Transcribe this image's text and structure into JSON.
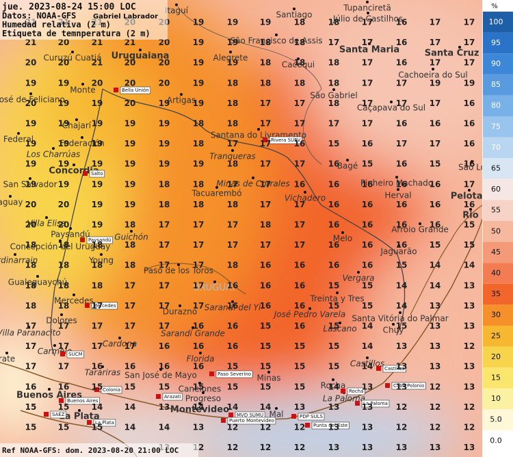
{
  "header": {
    "line1": "jue. 2023-08-24 15:00 LOC",
    "source": "Datos: NOAA-GFS",
    "author": "Gabriel Labrador",
    "variable": "Humedad relativa (2 m)",
    "labels": "Etiqueta de temnperatura (2 m)"
  },
  "footer": "Ref NOAA-GFS: dom. 2023-08-20 21:00 LOC",
  "legend": {
    "unit": "%",
    "values": [
      "100",
      "95",
      "90",
      "85",
      "80",
      "75",
      "70",
      "65",
      "60",
      "55",
      "50",
      "45",
      "40",
      "35",
      "30",
      "25",
      "20",
      "15",
      "10",
      "5.0",
      "0.0"
    ],
    "colors": [
      "#1f5fa8",
      "#2a73c8",
      "#3c87d8",
      "#5a9be0",
      "#78b0e8",
      "#98c4ee",
      "#b8d6f2",
      "#d8e6f4",
      "#f6e6e4",
      "#f7d2c6",
      "#f6b9a0",
      "#f59a78",
      "#f47c52",
      "#f2652b",
      "#f5902a",
      "#f7b731",
      "#f8d44c",
      "#fae56e",
      "#fcf1a2",
      "#fef8d8",
      "#ffffff"
    ]
  },
  "temperatures": [
    [
      21,
      21,
      21,
      20,
      20,
      19,
      19,
      19,
      18,
      18,
      17,
      16,
      17,
      17
    ],
    [
      21,
      20,
      21,
      21,
      20,
      19,
      19,
      18,
      18,
      17,
      17,
      16,
      17,
      17
    ],
    [
      20,
      20,
      21,
      20,
      20,
      19,
      19,
      18,
      18,
      18,
      17,
      16,
      17,
      17
    ],
    [
      19,
      19,
      20,
      20,
      20,
      19,
      18,
      18,
      18,
      18,
      17,
      17,
      19,
      19
    ],
    [
      20,
      19,
      19,
      20,
      19,
      19,
      18,
      17,
      17,
      18,
      17,
      17,
      17,
      16
    ],
    [
      19,
      19,
      19,
      19,
      19,
      18,
      18,
      17,
      17,
      17,
      17,
      16,
      16,
      16
    ],
    [
      19,
      19,
      19,
      19,
      19,
      18,
      17,
      17,
      16,
      15,
      16,
      17,
      17,
      16
    ],
    [
      19,
      19,
      19,
      19,
      19,
      19,
      18,
      17,
      17,
      16,
      15,
      16,
      15,
      16
    ],
    [
      19,
      19,
      19,
      19,
      18,
      18,
      17,
      17,
      16,
      16,
      16,
      16,
      16,
      17
    ],
    [
      20,
      20,
      19,
      19,
      18,
      18,
      18,
      17,
      17,
      16,
      16,
      16,
      16,
      16
    ],
    [
      20,
      20,
      19,
      18,
      17,
      17,
      17,
      18,
      17,
      16,
      16,
      16,
      16,
      15
    ],
    [
      18,
      18,
      18,
      18,
      17,
      17,
      17,
      17,
      17,
      16,
      16,
      16,
      15,
      15
    ],
    [
      18,
      18,
      18,
      18,
      17,
      17,
      18,
      16,
      16,
      16,
      16,
      15,
      14,
      14
    ],
    [
      18,
      18,
      18,
      17,
      17,
      17,
      16,
      16,
      16,
      15,
      15,
      14,
      14,
      13
    ],
    [
      18,
      18,
      17,
      17,
      17,
      17,
      16,
      16,
      16,
      15,
      15,
      14,
      13,
      13
    ],
    [
      17,
      17,
      17,
      17,
      17,
      16,
      16,
      15,
      16,
      15,
      14,
      15,
      13,
      13
    ],
    [
      17,
      17,
      17,
      17,
      16,
      16,
      16,
      15,
      15,
      15,
      14,
      13,
      13,
      12
    ],
    [
      17,
      17,
      16,
      16,
      16,
      16,
      15,
      15,
      15,
      15,
      14,
      13,
      13,
      13
    ],
    [
      16,
      16,
      15,
      15,
      15,
      15,
      15,
      15,
      15,
      14,
      13,
      13,
      12,
      13
    ],
    [
      15,
      15,
      14,
      14,
      13,
      14,
      14,
      14,
      13,
      13,
      13,
      12,
      12,
      12
    ],
    [
      15,
      15,
      15,
      14,
      14,
      13,
      12,
      12,
      12,
      13,
      13,
      12,
      12,
      12
    ],
    [
      null,
      null,
      null,
      null,
      13,
      12,
      12,
      12,
      12,
      13,
      13,
      13,
      13,
      13
    ]
  ],
  "places": [
    "Itaguí",
    "Santiago",
    "Tupanciretã",
    "Júlio de Castilhos",
    "São Francisco de Assis",
    "Santa Maria",
    "Santa Cruz do",
    "Curuzú Cuatiá",
    "Uruguaiana",
    "Alegrete",
    "Cacequi",
    "Cachoeira do Sul",
    "Monte",
    "São Gabriel",
    "José de Feliciano",
    "Artigas",
    "Caçapava do Sul",
    "Chajarí",
    "Federal",
    "Federación",
    "Santana do Livramento",
    "Los Charrúas",
    "Tranqueras",
    "Concordia",
    "Bagé",
    "São Lo",
    "San Salvador",
    "Minas de Corrales",
    "Pinheiro Machado",
    "Tacuarembó",
    "Vichadero",
    "Pelotas",
    "aguay",
    "Herval",
    "Rio",
    "Villa Elisa",
    "Arroio Grande",
    "Paysandú",
    "Guichón",
    "Melo",
    "Concepción del Uruguay",
    "Jaguarão",
    "ordinarrain",
    "Young",
    "Paso de los Toros",
    "Vergara",
    "Gualeguaychú",
    "URUGUAY",
    "Treinta y Tres",
    "Mercedes",
    "Sarandí del Yí",
    "José Pedro Varela",
    "Durazno",
    "Santa Vitória do Palmar",
    "Dolores",
    "Lascano",
    "Chuy",
    "Villa Paranacito",
    "Sarandí Grande",
    "Cardona",
    "Carmelo",
    "rate",
    "Florida",
    "Castillos",
    "Tarariras",
    "San José de Mayo",
    "Minas",
    "Rocha",
    "Buenos Aires",
    "Canelones",
    "Progreso",
    "La Paloma",
    "Montevideo",
    "La Plata",
    "Mal"
  ],
  "stations": [
    "Bella Unión",
    "Rivera SURV",
    "Salto",
    "Paysandú",
    "Mercedes",
    "SUCM",
    "Colonia",
    "Arazati",
    "Paso Severino",
    "Buenos Aires",
    "SAEZ",
    "La Plata",
    "MVD SUMU",
    "Puerto Montevideo",
    "PDP SULS",
    "Punta del Este",
    "Rocha",
    "Cabo Polonio",
    "Castillos",
    "La Paloma"
  ]
}
